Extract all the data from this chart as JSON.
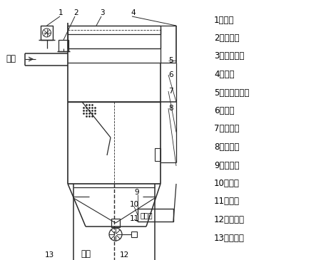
{
  "line_color": "#2a2a2a",
  "legend_items": [
    "1、风机",
    "2、控制阀",
    "3、低压气包",
    "4、上笱",
    "5、滤袋及笼骨",
    "6、花板",
    "7、净气笱",
    "8、检修门",
    "9、控制仪",
    "10、灰斗",
    "11、支腿",
    "12、卸料器",
    "13、检查孔"
  ],
  "label_jinfeng": "进风",
  "label_xuhui": "卸灰",
  "label_kongzhiyi_box": "控制仪"
}
